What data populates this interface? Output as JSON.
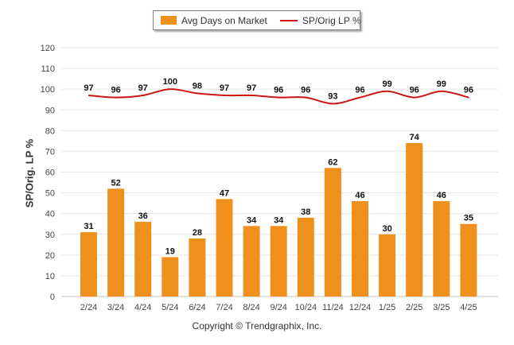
{
  "legend": {
    "bar_label": "Avg Days on Market",
    "line_label": "SP/Orig LP %"
  },
  "ylabel": "SP/Orig. LP %",
  "copyright": "Copyright © Trendgraphix, Inc.",
  "colors": {
    "bar": "#f0901c",
    "line": "#cc1515",
    "grid": "#e6e6e6"
  },
  "chart_data": {
    "type": "bar",
    "categories": [
      "2/24",
      "3/24",
      "4/24",
      "5/24",
      "6/24",
      "7/24",
      "8/24",
      "9/24",
      "10/24",
      "11/24",
      "12/24",
      "1/25",
      "2/25",
      "3/25",
      "4/25"
    ],
    "series": [
      {
        "name": "Avg Days on Market",
        "type": "bar",
        "values": [
          31,
          52,
          36,
          19,
          28,
          47,
          34,
          34,
          38,
          62,
          46,
          30,
          74,
          46,
          35
        ]
      },
      {
        "name": "SP/Orig LP %",
        "type": "line",
        "values": [
          97,
          96,
          97,
          100,
          98,
          97,
          97,
          96,
          96,
          93,
          96,
          99,
          96,
          99,
          96
        ]
      }
    ],
    "ylabel": "SP/Orig. LP %",
    "ylim": [
      0,
      120
    ],
    "yticks": [
      0,
      10,
      20,
      30,
      40,
      50,
      60,
      70,
      80,
      90,
      100,
      110,
      120
    ],
    "grid": true,
    "legend_position": "top-center"
  }
}
